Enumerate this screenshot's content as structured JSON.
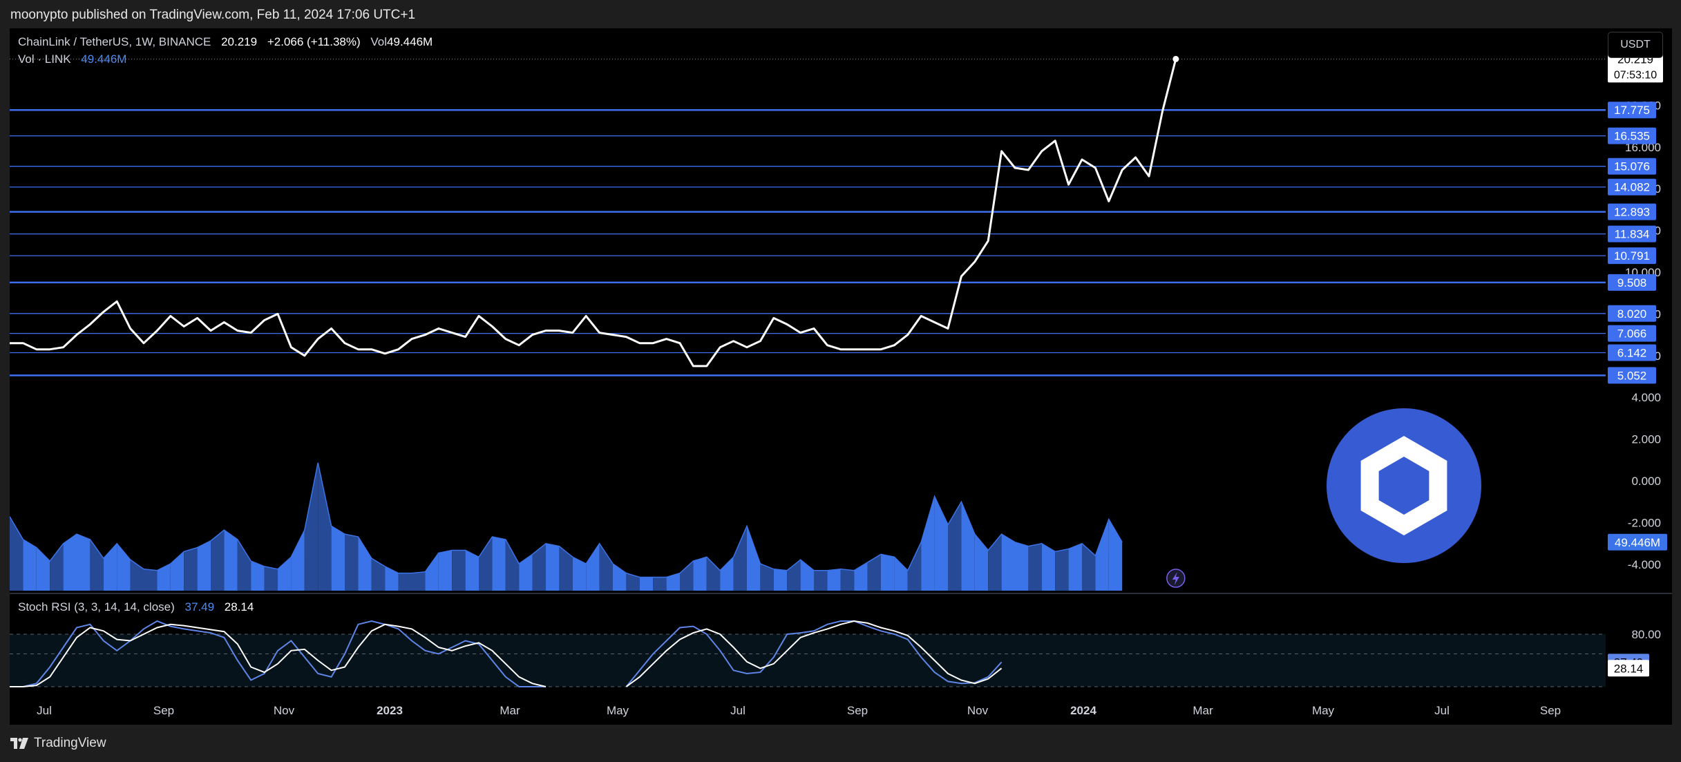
{
  "header": {
    "published_by": "moonypto published on TradingView.com, Feb 11, 2024 17:06 UTC+1"
  },
  "legend": {
    "symbol": "ChainLink / TetherUS, 1W, BINANCE",
    "price": "20.219",
    "change": "+2.066 (+11.38%)",
    "vol_label": "Vol",
    "vol_value": "49.446M",
    "vol_row_label": "Vol · LINK",
    "vol_row_value": "49.446M"
  },
  "currency_button": "USDT",
  "stoch_legend": {
    "label": "Stoch RSI (3, 3, 14, 14, close)",
    "k": "37.49",
    "d": "28.14"
  },
  "footer": {
    "brand": "TradingView"
  },
  "colors": {
    "line": "#ffffff",
    "level": "#3d6ff0",
    "volume": "#3b73e8",
    "volume_dark": "#274a96",
    "stoch_k": "#5e86e8",
    "stoch_d": "#ffffff",
    "logo": "#375bd2"
  },
  "chart_data": {
    "type": "line",
    "title": "ChainLink / TetherUS, 1W, BINANCE",
    "x_labels": [
      "Jul",
      "Sep",
      "Nov",
      "2023",
      "Mar",
      "May",
      "Jul",
      "Sep",
      "Nov",
      "2024",
      "Mar",
      "May",
      "Jul",
      "Sep"
    ],
    "y_ticks": [
      "18.000",
      "16.000",
      "14.000",
      "12.000",
      "10.000",
      "8.000",
      "6.000",
      "4.000",
      "2.000",
      "0.000",
      "-2.000",
      "-4.000"
    ],
    "price_series": {
      "name": "LINK/USDT",
      "values": [
        6.6,
        6.6,
        6.3,
        6.3,
        6.4,
        7.0,
        7.5,
        8.1,
        8.6,
        7.3,
        6.6,
        7.2,
        7.9,
        7.4,
        7.8,
        7.2,
        7.6,
        7.2,
        7.1,
        7.7,
        8.0,
        6.4,
        6.0,
        6.8,
        7.3,
        6.6,
        6.3,
        6.3,
        6.1,
        6.3,
        6.8,
        7.0,
        7.3,
        7.1,
        6.9,
        7.9,
        7.4,
        6.8,
        6.5,
        7.0,
        7.2,
        7.2,
        7.1,
        7.9,
        7.1,
        7.0,
        6.9,
        6.6,
        6.6,
        6.8,
        6.6,
        5.5,
        5.5,
        6.4,
        6.7,
        6.4,
        6.7,
        7.8,
        7.5,
        7.1,
        7.3,
        6.5,
        6.3,
        6.3,
        6.3,
        6.3,
        6.5,
        7.0,
        7.9,
        7.6,
        7.3,
        9.8,
        10.5,
        11.5,
        15.8,
        15.0,
        14.9,
        15.8,
        16.3,
        14.2,
        15.4,
        15.0,
        13.4,
        14.9,
        15.5,
        14.6,
        17.7,
        20.219
      ]
    },
    "price_levels": [
      "17.775",
      "16.535",
      "15.076",
      "14.082",
      "12.893",
      "11.834",
      "10.791",
      "9.508",
      "8.020",
      "7.066",
      "6.142",
      "5.052"
    ],
    "last_price": "20.219",
    "countdown": "07:53:10",
    "volume_label": "49.446M",
    "volume": {
      "values": [
        0.55,
        0.38,
        0.32,
        0.22,
        0.35,
        0.42,
        0.38,
        0.24,
        0.35,
        0.23,
        0.16,
        0.15,
        0.2,
        0.29,
        0.32,
        0.37,
        0.45,
        0.38,
        0.22,
        0.18,
        0.16,
        0.25,
        0.45,
        0.95,
        0.48,
        0.42,
        0.4,
        0.24,
        0.18,
        0.13,
        0.13,
        0.14,
        0.28,
        0.3,
        0.3,
        0.25,
        0.4,
        0.38,
        0.2,
        0.27,
        0.35,
        0.33,
        0.25,
        0.2,
        0.35,
        0.2,
        0.13,
        0.1,
        0.1,
        0.1,
        0.13,
        0.22,
        0.25,
        0.15,
        0.25,
        0.48,
        0.2,
        0.16,
        0.15,
        0.23,
        0.15,
        0.15,
        0.16,
        0.15,
        0.21,
        0.27,
        0.25,
        0.15,
        0.36,
        0.7,
        0.49,
        0.66,
        0.42,
        0.3,
        0.42,
        0.36,
        0.33,
        0.35,
        0.29,
        0.31,
        0.35,
        0.26,
        0.53,
        0.36
      ],
      "dark_flags": [
        1,
        0,
        0,
        1,
        0,
        0,
        1,
        0,
        0,
        1,
        1,
        0,
        0,
        1,
        0,
        1,
        0,
        1,
        0,
        1,
        0,
        0,
        1,
        1,
        0,
        1,
        0,
        1,
        0,
        1,
        1,
        0,
        0,
        1,
        0,
        1,
        0,
        1,
        0,
        1,
        0,
        1,
        0,
        0,
        1,
        0,
        1,
        0,
        1,
        0,
        1,
        0,
        1,
        0,
        1,
        0,
        1,
        0,
        1,
        0,
        1,
        0,
        1,
        0,
        1,
        0,
        0,
        1,
        0,
        0,
        1,
        0,
        0,
        1,
        0,
        0,
        1,
        0,
        1,
        0,
        1,
        0,
        0,
        1
      ]
    },
    "stoch_rsi": {
      "k": {
        "name": "K",
        "values": [
          0,
          0,
          5,
          30,
          60,
          90,
          95,
          70,
          55,
          70,
          88,
          100,
          92,
          88,
          85,
          82,
          75,
          40,
          10,
          20,
          55,
          70,
          45,
          20,
          15,
          50,
          95,
          100,
          95,
          88,
          70,
          55,
          50,
          60,
          70,
          65,
          40,
          15,
          0,
          0,
          0,
          0,
          0,
          0,
          0,
          0,
          0,
          25,
          50,
          70,
          90,
          92,
          80,
          55,
          25,
          20,
          22,
          45,
          80,
          82,
          85,
          95,
          100,
          100,
          92,
          85,
          80,
          72,
          45,
          22,
          8,
          5,
          6,
          15,
          37.49
        ],
        "visible_ranges": [
          [
            0,
            40
          ],
          [
            46,
            74
          ]
        ]
      },
      "d": {
        "name": "D",
        "values": [
          0,
          0,
          2,
          15,
          45,
          75,
          90,
          85,
          72,
          70,
          80,
          90,
          95,
          93,
          90,
          87,
          84,
          65,
          30,
          22,
          35,
          55,
          57,
          40,
          25,
          30,
          60,
          85,
          95,
          92,
          88,
          75,
          60,
          55,
          62,
          67,
          55,
          35,
          15,
          5,
          0,
          0,
          0,
          0,
          0,
          0,
          0,
          15,
          35,
          55,
          72,
          82,
          88,
          80,
          60,
          38,
          28,
          35,
          55,
          75,
          82,
          88,
          95,
          100,
          97,
          90,
          85,
          78,
          60,
          40,
          20,
          10,
          5,
          12,
          28.14
        ],
        "visible_ranges": [
          [
            0,
            40
          ],
          [
            46,
            74
          ]
        ]
      },
      "ticks": [
        "80.00"
      ]
    }
  }
}
